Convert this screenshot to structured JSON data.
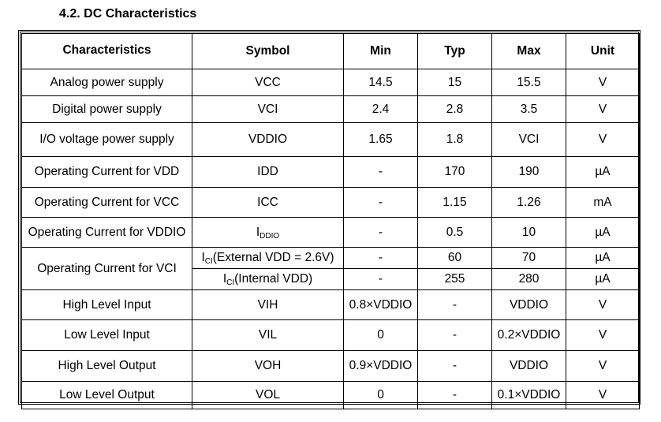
{
  "title": "4.2.  DC Characteristics",
  "headers": {
    "characteristics": "Characteristics",
    "symbol": "Symbol",
    "min": "Min",
    "typ": "Typ",
    "max": "Max",
    "unit": "Unit"
  },
  "rows": [
    {
      "characteristics": "Analog power supply",
      "symbol": "VCC",
      "min": "14.5",
      "typ": "15",
      "max": "15.5",
      "unit": "V"
    },
    {
      "characteristics": "Digital power supply",
      "symbol": "VCI",
      "min": "2.4",
      "typ": "2.8",
      "max": "3.5",
      "unit": "V"
    },
    {
      "characteristics": "I/O voltage power supply",
      "symbol": "VDDIO",
      "min": "1.65",
      "typ": "1.8",
      "max": "VCI",
      "unit": "V"
    },
    {
      "characteristics": "Operating Current for VDD",
      "symbol": "IDD",
      "min": "-",
      "typ": "170",
      "max": "190",
      "unit": "µA"
    },
    {
      "characteristics": "Operating Current for VCC",
      "symbol": "ICC",
      "min": "-",
      "typ": "1.15",
      "max": "1.26",
      "unit": "mA"
    },
    {
      "characteristics": "Operating Current for VDDIO",
      "symbol_main": "I",
      "symbol_sub": "DDIO",
      "symbol_rest": "",
      "min": "-",
      "typ": "0.5",
      "max": "10",
      "unit": "µA"
    },
    {
      "characteristics": "Operating Current for VCI",
      "symbol_main": "I",
      "symbol_sub": "CI",
      "symbol_rest": "(External VDD = 2.6V)",
      "min": "-",
      "typ": "60",
      "max": "70",
      "unit": "µA"
    },
    {
      "symbol_main": "I",
      "symbol_sub": "CI",
      "symbol_rest": "(Internal VDD)",
      "min": "-",
      "typ": "255",
      "max": "280",
      "unit": "µA"
    },
    {
      "characteristics": "High Level Input",
      "symbol": "VIH",
      "min": "0.8×VDDIO",
      "typ": "-",
      "max": "VDDIO",
      "unit": "V"
    },
    {
      "characteristics": "Low Level Input",
      "symbol": "VIL",
      "min": "0",
      "typ": "-",
      "max": "0.2×VDDIO",
      "unit": "V"
    },
    {
      "characteristics": "High Level Output",
      "symbol": "VOH",
      "min": "0.9×VDDIO",
      "typ": "-",
      "max": "VDDIO",
      "unit": "V"
    },
    {
      "characteristics": "Low Level Output",
      "symbol": "VOL",
      "min": "0",
      "typ": "-",
      "max": "0.1×VDDIO",
      "unit": "V"
    }
  ]
}
